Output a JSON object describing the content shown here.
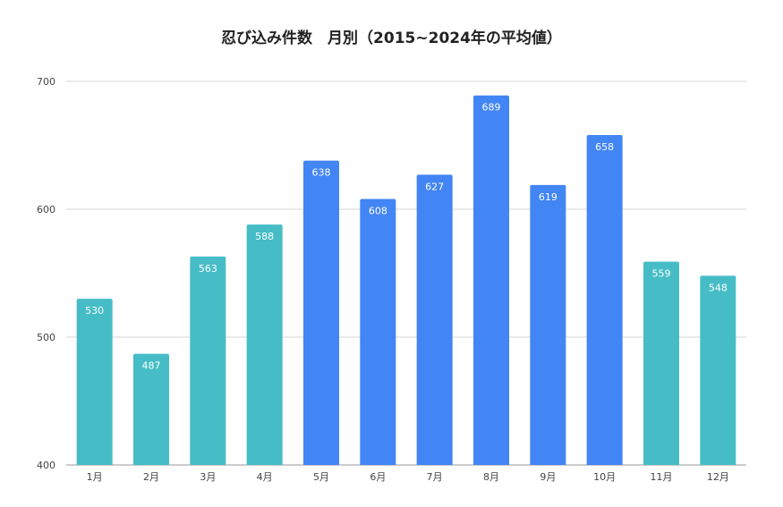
{
  "chart_data": {
    "type": "bar",
    "title": "忍び込み件数　月別（2015~2024年の平均値）",
    "xlabel": "",
    "ylabel": "",
    "categories": [
      "1月",
      "2月",
      "3月",
      "4月",
      "5月",
      "6月",
      "7月",
      "8月",
      "9月",
      "10月",
      "11月",
      "12月"
    ],
    "values": [
      530,
      487,
      563,
      588,
      638,
      608,
      627,
      689,
      619,
      658,
      559,
      548
    ],
    "bar_colors": [
      "#46BDC6",
      "#46BDC6",
      "#46BDC6",
      "#46BDC6",
      "#4285F4",
      "#4285F4",
      "#4285F4",
      "#4285F4",
      "#4285F4",
      "#4285F4",
      "#46BDC6",
      "#46BDC6"
    ],
    "ylim": [
      400,
      700
    ],
    "yticks": [
      400,
      500,
      600,
      700
    ],
    "data_labels": true,
    "grid": true,
    "legend": "none"
  }
}
